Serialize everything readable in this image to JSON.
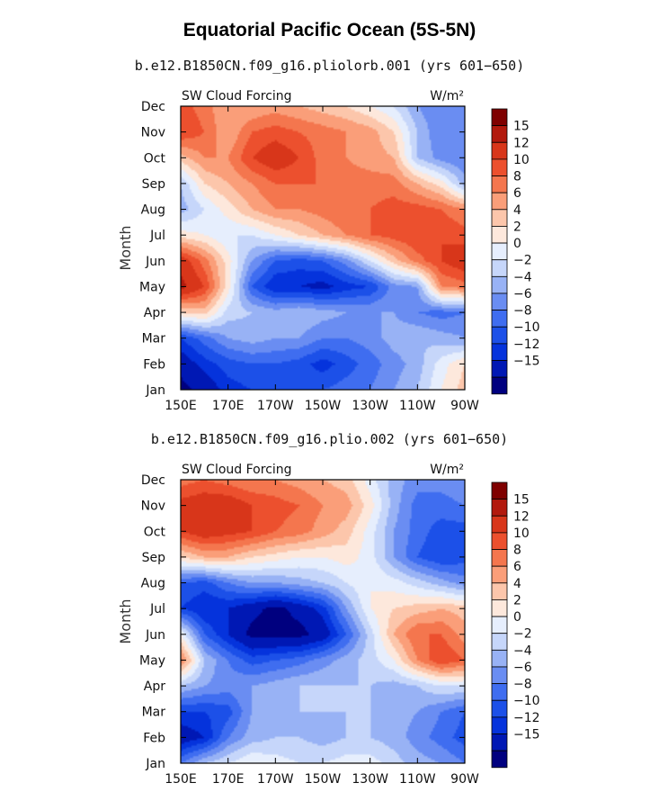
{
  "title": "Equatorial Pacific Ocean (5S-5N)",
  "panels": [
    {
      "run": "b.e12.B1850CN.f09_g16.pliolorb.001 (yrs 601−650)",
      "left_label": "SW Cloud Forcing",
      "units": "W/m²"
    },
    {
      "run": "b.e12.B1850CN.f09_g16.plio.002 (yrs 601−650)",
      "left_label": "SW Cloud Forcing",
      "units": "W/m²"
    }
  ],
  "colors": [
    "#00007f",
    "#0018b4",
    "#0533dc",
    "#1c50e8",
    "#3f6df0",
    "#6a8df2",
    "#98b2f5",
    "#c6d6fa",
    "#e6eefd",
    "#fde8dc",
    "#fcc6ab",
    "#fa9e79",
    "#f4764e",
    "#ec502e",
    "#d8361a",
    "#b2190d",
    "#7f0000"
  ],
  "chart_data": [
    {
      "type": "heatmap",
      "xlabel": "",
      "ylabel": "Month",
      "x_ticks": [
        "150E",
        "170E",
        "170W",
        "150W",
        "130W",
        "110W",
        "90W"
      ],
      "y_ticks": [
        "Jan",
        "Feb",
        "Mar",
        "Apr",
        "May",
        "Jun",
        "Jul",
        "Aug",
        "Sep",
        "Oct",
        "Nov",
        "Dec"
      ],
      "colorbar_labels": [
        "15",
        "12",
        "10",
        "8",
        "6",
        "4",
        "2",
        "0",
        "−2",
        "−4",
        "−6",
        "−8",
        "−10",
        "−12",
        "−15"
      ],
      "levels": [
        -15,
        -12,
        -10,
        -8,
        -6,
        -4,
        -2,
        0,
        2,
        4,
        6,
        8,
        10,
        12,
        15
      ],
      "lon": [
        150,
        160,
        170,
        180,
        190,
        200,
        210,
        220,
        230,
        240,
        250,
        260,
        270
      ],
      "months": [
        "Jan",
        "Feb",
        "Mar",
        "Apr",
        "May",
        "Jun",
        "Jul",
        "Aug",
        "Sep",
        "Oct",
        "Nov",
        "Dec"
      ],
      "values": [
        [
          -16,
          -14,
          -11,
          -10,
          -9,
          -10,
          -8,
          -7,
          -6,
          -4,
          -2,
          2,
          5
        ],
        [
          -14,
          -11,
          -9,
          -8,
          -8,
          -9,
          -11,
          -9,
          -7,
          -5,
          -3,
          1,
          4
        ],
        [
          -10,
          -7,
          -4,
          -3,
          -4,
          -4,
          -6,
          -6,
          -5,
          -3,
          -2,
          -3,
          -4
        ],
        [
          4,
          5,
          -1,
          -2,
          -3,
          -2,
          -3,
          -4,
          -4,
          -4,
          -6,
          -7,
          -6
        ],
        [
          16,
          12,
          3,
          -8,
          -12,
          -12,
          -13,
          -11,
          -10,
          -5,
          -4,
          8,
          9
        ],
        [
          14,
          9,
          3,
          -4,
          -8,
          -9,
          -8,
          -5,
          0,
          5,
          9,
          12,
          14
        ],
        [
          3,
          2,
          0,
          0,
          2,
          4,
          6,
          8,
          10,
          11,
          12,
          12,
          11
        ],
        [
          -3,
          0,
          3,
          6,
          8,
          8,
          9,
          10,
          10,
          11,
          11,
          10,
          8
        ],
        [
          -2,
          4,
          6,
          8,
          10,
          10,
          10,
          9,
          9,
          9,
          6,
          3,
          -3
        ],
        [
          5,
          8,
          8,
          12,
          14,
          12,
          9,
          8,
          7,
          6,
          -2,
          -5,
          -6
        ],
        [
          12,
          10,
          6,
          10,
          11,
          10,
          9,
          8,
          7,
          4,
          -2,
          -6,
          -5
        ],
        [
          11,
          9,
          6,
          6,
          7,
          6,
          5,
          4,
          2,
          0,
          -4,
          -6,
          -6
        ]
      ]
    },
    {
      "type": "heatmap",
      "xlabel": "",
      "ylabel": "Month",
      "x_ticks": [
        "150E",
        "170E",
        "170W",
        "150W",
        "130W",
        "110W",
        "90W"
      ],
      "y_ticks": [
        "Jan",
        "Feb",
        "Mar",
        "Apr",
        "May",
        "Jun",
        "Jul",
        "Aug",
        "Sep",
        "Oct",
        "Nov",
        "Dec"
      ],
      "colorbar_labels": [
        "15",
        "12",
        "10",
        "8",
        "6",
        "4",
        "2",
        "0",
        "−2",
        "−4",
        "−6",
        "−8",
        "−10",
        "−12",
        "−15"
      ],
      "levels": [
        -15,
        -12,
        -10,
        -8,
        -6,
        -4,
        -2,
        0,
        2,
        4,
        6,
        8,
        10,
        12,
        15
      ],
      "lon": [
        150,
        160,
        170,
        180,
        190,
        200,
        210,
        220,
        230,
        240,
        250,
        260,
        270
      ],
      "months": [
        "Jan",
        "Feb",
        "Mar",
        "Apr",
        "May",
        "Jun",
        "Jul",
        "Aug",
        "Sep",
        "Oct",
        "Nov",
        "Dec"
      ],
      "values": [
        [
          -6,
          -2,
          0,
          2,
          1,
          0,
          0,
          1,
          1,
          -1,
          -3,
          -4,
          -6
        ],
        [
          -14,
          -12,
          -6,
          -3,
          -2,
          -2,
          -3,
          -2,
          -2,
          -3,
          -5,
          -7,
          -9
        ],
        [
          -10,
          -10,
          -9,
          -4,
          -3,
          -2,
          -2,
          -2,
          -2,
          -3,
          -4,
          -6,
          -8
        ],
        [
          -2,
          -4,
          -5,
          -4,
          -3,
          -2,
          -2,
          -2,
          -2,
          -3,
          -2,
          0,
          0
        ],
        [
          9,
          -2,
          -6,
          -9,
          -8,
          -7,
          -5,
          -3,
          -1,
          2,
          8,
          12,
          10
        ],
        [
          2,
          -8,
          -12,
          -16,
          -16,
          -16,
          -14,
          -8,
          -1,
          6,
          10,
          10,
          7
        ],
        [
          -10,
          -12,
          -12,
          -14,
          -16,
          -14,
          -11,
          -4,
          2,
          4,
          5,
          6,
          5
        ],
        [
          -8,
          -9,
          -6,
          -4,
          -4,
          -3,
          -2,
          0,
          2,
          1,
          -1,
          -3,
          -5
        ],
        [
          4,
          6,
          6,
          4,
          3,
          2,
          2,
          3,
          1,
          -4,
          -8,
          -10,
          -9
        ],
        [
          12,
          14,
          13,
          12,
          10,
          9,
          7,
          5,
          1,
          -4,
          -7,
          -9,
          -9
        ],
        [
          13,
          14,
          14,
          12,
          11,
          10,
          8,
          7,
          3,
          -3,
          -7,
          -7,
          -6
        ],
        [
          9,
          10,
          9,
          8,
          8,
          7,
          6,
          5,
          1,
          -3,
          -5,
          -5,
          -4
        ]
      ]
    }
  ]
}
